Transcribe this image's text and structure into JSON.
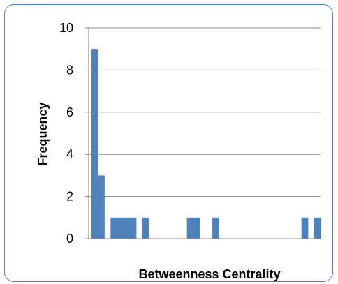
{
  "chart_data": {
    "type": "bar",
    "title": "",
    "xlabel": "Betweenness Centrality",
    "ylabel": "Frequency",
    "ylim": [
      0,
      10
    ],
    "yticks": [
      0,
      2,
      4,
      6,
      8,
      10
    ],
    "grid": true,
    "legend": "none",
    "bar_color": "#4f81bd",
    "bin_count": 36,
    "bins": [
      {
        "bin": 1,
        "value": 9
      },
      {
        "bin": 2,
        "value": 3
      },
      {
        "bin": 4,
        "value": 1
      },
      {
        "bin": 5,
        "value": 1
      },
      {
        "bin": 6,
        "value": 1
      },
      {
        "bin": 7,
        "value": 1
      },
      {
        "bin": 9,
        "value": 1
      },
      {
        "bin": 16,
        "value": 1
      },
      {
        "bin": 17,
        "value": 1
      },
      {
        "bin": 20,
        "value": 1
      },
      {
        "bin": 34,
        "value": 1
      },
      {
        "bin": 36,
        "value": 1
      }
    ]
  }
}
